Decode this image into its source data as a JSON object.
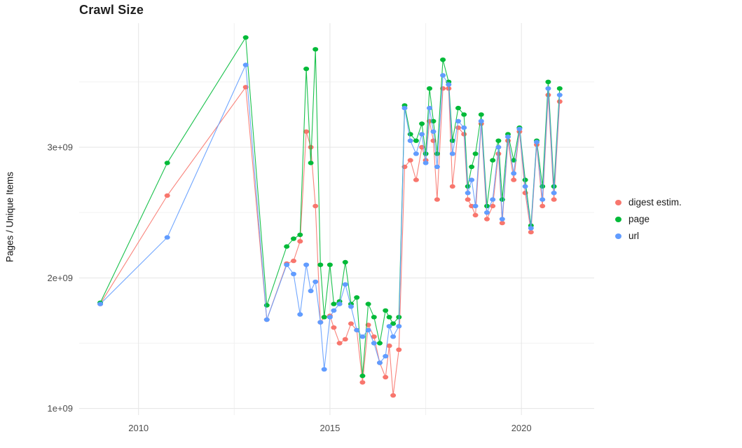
{
  "title": "Crawl Size",
  "ylabel": "Pages / Unique Items",
  "legend": {
    "items": [
      {
        "label": "digest estim.",
        "color": "#F8766D"
      },
      {
        "label": "page",
        "color": "#00BA38"
      },
      {
        "label": "url",
        "color": "#619CFF"
      }
    ]
  },
  "chart_data": {
    "type": "line",
    "title": "Crawl Size",
    "xlabel": "",
    "ylabel": "Pages / Unique Items",
    "xlim": [
      2008.45,
      2021.9
    ],
    "ylim": [
      950000000.0,
      3950000000.0
    ],
    "grid": true,
    "legend_position": "right",
    "x_ticks": [
      {
        "v": 2010,
        "label": "2010"
      },
      {
        "v": 2015,
        "label": "2015"
      },
      {
        "v": 2020,
        "label": "2020"
      }
    ],
    "y_ticks": [
      {
        "v": 1000000000.0,
        "label": "1e+09"
      },
      {
        "v": 2000000000.0,
        "label": "2e+09"
      },
      {
        "v": 3000000000.0,
        "label": "3e+09"
      }
    ],
    "x_minor_ticks": [
      2012.5,
      2017.5
    ],
    "y_minor_ticks": [
      1500000000.0,
      2500000000.0,
      3500000000.0
    ],
    "series": [
      {
        "name": "digest estim.",
        "color": "#F8766D",
        "points": [
          [
            2009.0,
            1800000000.0
          ],
          [
            2010.75,
            2630000000.0
          ],
          [
            2012.8,
            3460000000.0
          ],
          [
            2013.35,
            1680000000.0
          ],
          [
            2013.87,
            2110000000.0
          ],
          [
            2014.05,
            2130000000.0
          ],
          [
            2014.22,
            2280000000.0
          ],
          [
            2014.38,
            3120000000.0
          ],
          [
            2014.5,
            3000000000.0
          ],
          [
            2014.62,
            2550000000.0
          ],
          [
            2014.75,
            1660000000.0
          ],
          [
            2014.85,
            1700000000.0
          ],
          [
            2015.0,
            1710000000.0
          ],
          [
            2015.1,
            1620000000.0
          ],
          [
            2015.25,
            1500000000.0
          ],
          [
            2015.4,
            1530000000.0
          ],
          [
            2015.55,
            1650000000.0
          ],
          [
            2015.7,
            1600000000.0
          ],
          [
            2015.85,
            1200000000.0
          ],
          [
            2016.0,
            1640000000.0
          ],
          [
            2016.15,
            1550000000.0
          ],
          [
            2016.3,
            1350000000.0
          ],
          [
            2016.45,
            1240000000.0
          ],
          [
            2016.55,
            1480000000.0
          ],
          [
            2016.65,
            1100000000.0
          ],
          [
            2016.8,
            1450000000.0
          ],
          [
            2016.95,
            2850000000.0
          ],
          [
            2017.1,
            2900000000.0
          ],
          [
            2017.25,
            2750000000.0
          ],
          [
            2017.4,
            3000000000.0
          ],
          [
            2017.5,
            2900000000.0
          ],
          [
            2017.6,
            3200000000.0
          ],
          [
            2017.7,
            3050000000.0
          ],
          [
            2017.8,
            2600000000.0
          ],
          [
            2017.95,
            3450000000.0
          ],
          [
            2018.1,
            3450000000.0
          ],
          [
            2018.2,
            2700000000.0
          ],
          [
            2018.35,
            3150000000.0
          ],
          [
            2018.5,
            3100000000.0
          ],
          [
            2018.6,
            2600000000.0
          ],
          [
            2018.7,
            2550000000.0
          ],
          [
            2018.8,
            2480000000.0
          ],
          [
            2018.95,
            3180000000.0
          ],
          [
            2019.1,
            2450000000.0
          ],
          [
            2019.25,
            2550000000.0
          ],
          [
            2019.4,
            2950000000.0
          ],
          [
            2019.5,
            2420000000.0
          ],
          [
            2019.65,
            3050000000.0
          ],
          [
            2019.8,
            2750000000.0
          ],
          [
            2019.95,
            3120000000.0
          ],
          [
            2020.1,
            2650000000.0
          ],
          [
            2020.25,
            2350000000.0
          ],
          [
            2020.4,
            3020000000.0
          ],
          [
            2020.55,
            2550000000.0
          ],
          [
            2020.7,
            3400000000.0
          ],
          [
            2020.85,
            2600000000.0
          ],
          [
            2021.0,
            3350000000.0
          ]
        ]
      },
      {
        "name": "page",
        "color": "#00BA38",
        "points": [
          [
            2009.0,
            1810000000.0
          ],
          [
            2010.75,
            2880000000.0
          ],
          [
            2012.8,
            3840000000.0
          ],
          [
            2013.35,
            1790000000.0
          ],
          [
            2013.87,
            2240000000.0
          ],
          [
            2014.05,
            2300000000.0
          ],
          [
            2014.22,
            2330000000.0
          ],
          [
            2014.38,
            3600000000.0
          ],
          [
            2014.5,
            2880000000.0
          ],
          [
            2014.62,
            3750000000.0
          ],
          [
            2014.75,
            2100000000.0
          ],
          [
            2014.85,
            1700000000.0
          ],
          [
            2015.0,
            2100000000.0
          ],
          [
            2015.1,
            1800000000.0
          ],
          [
            2015.25,
            1820000000.0
          ],
          [
            2015.4,
            2120000000.0
          ],
          [
            2015.55,
            1800000000.0
          ],
          [
            2015.7,
            1850000000.0
          ],
          [
            2015.85,
            1250000000.0
          ],
          [
            2016.0,
            1800000000.0
          ],
          [
            2016.15,
            1700000000.0
          ],
          [
            2016.3,
            1500000000.0
          ],
          [
            2016.45,
            1750000000.0
          ],
          [
            2016.55,
            1700000000.0
          ],
          [
            2016.65,
            1650000000.0
          ],
          [
            2016.8,
            1700000000.0
          ],
          [
            2016.95,
            3320000000.0
          ],
          [
            2017.1,
            3100000000.0
          ],
          [
            2017.25,
            3050000000.0
          ],
          [
            2017.4,
            3180000000.0
          ],
          [
            2017.5,
            2950000000.0
          ],
          [
            2017.6,
            3450000000.0
          ],
          [
            2017.7,
            3200000000.0
          ],
          [
            2017.8,
            2950000000.0
          ],
          [
            2017.95,
            3670000000.0
          ],
          [
            2018.1,
            3500000000.0
          ],
          [
            2018.2,
            3050000000.0
          ],
          [
            2018.35,
            3300000000.0
          ],
          [
            2018.5,
            3250000000.0
          ],
          [
            2018.6,
            2700000000.0
          ],
          [
            2018.7,
            2850000000.0
          ],
          [
            2018.8,
            2950000000.0
          ],
          [
            2018.95,
            3250000000.0
          ],
          [
            2019.1,
            2550000000.0
          ],
          [
            2019.25,
            2900000000.0
          ],
          [
            2019.4,
            3050000000.0
          ],
          [
            2019.5,
            2600000000.0
          ],
          [
            2019.65,
            3100000000.0
          ],
          [
            2019.8,
            2900000000.0
          ],
          [
            2019.95,
            3150000000.0
          ],
          [
            2020.1,
            2750000000.0
          ],
          [
            2020.25,
            2400000000.0
          ],
          [
            2020.4,
            3050000000.0
          ],
          [
            2020.55,
            2700000000.0
          ],
          [
            2020.7,
            3500000000.0
          ],
          [
            2020.85,
            2700000000.0
          ],
          [
            2021.0,
            3450000000.0
          ]
        ]
      },
      {
        "name": "url",
        "color": "#619CFF",
        "points": [
          [
            2009.0,
            1800000000.0
          ],
          [
            2010.75,
            2310000000.0
          ],
          [
            2012.8,
            3630000000.0
          ],
          [
            2013.35,
            1680000000.0
          ],
          [
            2013.87,
            2100000000.0
          ],
          [
            2014.05,
            2030000000.0
          ],
          [
            2014.22,
            1720000000.0
          ],
          [
            2014.38,
            2100000000.0
          ],
          [
            2014.5,
            1900000000.0
          ],
          [
            2014.62,
            1970000000.0
          ],
          [
            2014.75,
            1660000000.0
          ],
          [
            2014.85,
            1300000000.0
          ],
          [
            2015.0,
            1700000000.0
          ],
          [
            2015.1,
            1750000000.0
          ],
          [
            2015.25,
            1800000000.0
          ],
          [
            2015.4,
            1950000000.0
          ],
          [
            2015.55,
            1780000000.0
          ],
          [
            2015.7,
            1600000000.0
          ],
          [
            2015.85,
            1550000000.0
          ],
          [
            2016.0,
            1600000000.0
          ],
          [
            2016.15,
            1500000000.0
          ],
          [
            2016.3,
            1350000000.0
          ],
          [
            2016.45,
            1400000000.0
          ],
          [
            2016.55,
            1630000000.0
          ],
          [
            2016.65,
            1550000000.0
          ],
          [
            2016.8,
            1630000000.0
          ],
          [
            2016.95,
            3300000000.0
          ],
          [
            2017.1,
            3050000000.0
          ],
          [
            2017.25,
            2950000000.0
          ],
          [
            2017.4,
            3100000000.0
          ],
          [
            2017.5,
            2880000000.0
          ],
          [
            2017.6,
            3300000000.0
          ],
          [
            2017.7,
            3120000000.0
          ],
          [
            2017.8,
            2850000000.0
          ],
          [
            2017.95,
            3550000000.0
          ],
          [
            2018.1,
            3480000000.0
          ],
          [
            2018.2,
            2950000000.0
          ],
          [
            2018.35,
            3200000000.0
          ],
          [
            2018.5,
            3150000000.0
          ],
          [
            2018.6,
            2650000000.0
          ],
          [
            2018.7,
            2750000000.0
          ],
          [
            2018.8,
            2550000000.0
          ],
          [
            2018.95,
            3200000000.0
          ],
          [
            2019.1,
            2500000000.0
          ],
          [
            2019.25,
            2600000000.0
          ],
          [
            2019.4,
            3000000000.0
          ],
          [
            2019.5,
            2450000000.0
          ],
          [
            2019.65,
            3080000000.0
          ],
          [
            2019.8,
            2800000000.0
          ],
          [
            2019.95,
            3140000000.0
          ],
          [
            2020.1,
            2700000000.0
          ],
          [
            2020.25,
            2380000000.0
          ],
          [
            2020.4,
            3040000000.0
          ],
          [
            2020.55,
            2600000000.0
          ],
          [
            2020.7,
            3450000000.0
          ],
          [
            2020.85,
            2650000000.0
          ],
          [
            2021.0,
            3400000000.0
          ]
        ]
      }
    ]
  }
}
